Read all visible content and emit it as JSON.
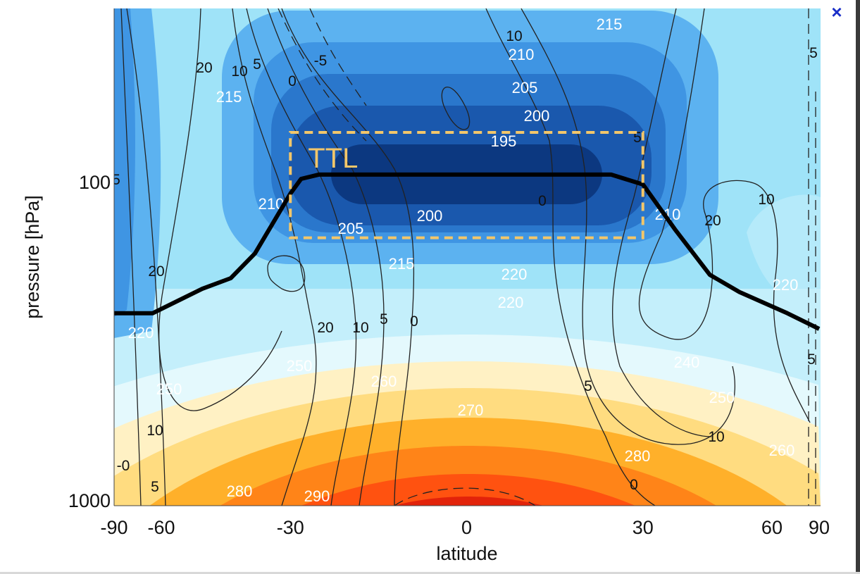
{
  "dialog": {
    "close_label": "×"
  },
  "chart_data": {
    "type": "contour",
    "title": "",
    "xlabel": "latitude",
    "ylabel": "pressure [hPa]",
    "x_axis": {
      "scale": "sine-latitude",
      "range": [
        -90,
        90
      ],
      "ticks": [
        "-90",
        "-60",
        "-30",
        "0",
        "30",
        "60",
        "90"
      ]
    },
    "y_axis": {
      "scale": "log-reversed",
      "range": [
        1000,
        29
      ],
      "ticks": [
        "100",
        "1000"
      ]
    },
    "temperature_K": {
      "style": "filled contours, white labelled lines",
      "levels": [
        195,
        200,
        205,
        210,
        215,
        220,
        230,
        240,
        250,
        260,
        270,
        280,
        290,
        300
      ],
      "colors": [
        "#0c3880",
        "#1a58ad",
        "#2a77cc",
        "#3f95e3",
        "#5cb2f0",
        "#9fe3f8",
        "#c4effb",
        "#e4f9fd",
        "#fff1c4",
        "#ffdc80",
        "#ffb02a",
        "#ff8418",
        "#ff5210",
        "#e2230a"
      ],
      "labels": [
        "215",
        "210",
        "205",
        "200",
        "195",
        "200",
        "205",
        "215",
        "220",
        "220",
        "250",
        "260",
        "270",
        "280",
        "280",
        "290",
        "240",
        "250",
        "260",
        "220",
        "215",
        "210",
        "210",
        "220",
        "250"
      ]
    },
    "zonal_wind_m_s": {
      "style": "black line contours, dashed negative",
      "levels": [
        -5,
        0,
        5,
        10,
        20
      ],
      "labels": [
        "20",
        "10",
        "5",
        "-5",
        "0",
        "10",
        "5",
        "0",
        "10",
        "20",
        "20",
        "20",
        "10",
        "5",
        "0",
        "5",
        "10",
        "5",
        "10",
        "5",
        "0",
        "5",
        "0",
        "0",
        "5",
        "-0"
      ]
    },
    "tropopause": {
      "label": "",
      "points": [
        [
          -90,
          259
        ],
        [
          -63,
          259
        ],
        [
          -48.6,
          217
        ],
        [
          -42,
          201
        ],
        [
          -36.9,
          168
        ],
        [
          -30,
          109
        ],
        [
          -28,
          98
        ],
        [
          -24.8,
          95
        ],
        [
          24.2,
          95
        ],
        [
          30,
          102
        ],
        [
          36.2,
          141
        ],
        [
          43.6,
          196
        ],
        [
          50.7,
          222
        ],
        [
          65.5,
          259
        ],
        [
          90,
          290
        ]
      ]
    },
    "ttl_box": {
      "label": "TTL",
      "lat": [
        -30,
        30
      ],
      "pressure": [
        150,
        70
      ],
      "color": "#f2c66a"
    }
  }
}
